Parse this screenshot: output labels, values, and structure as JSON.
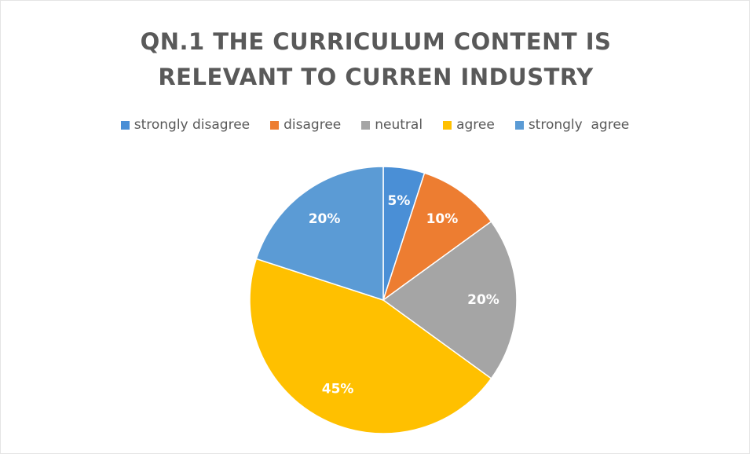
{
  "chart_data": {
    "type": "pie",
    "title": "QN.1 THE CURRICULUM CONTENT IS RELEVANT TO CURREN INDUSTRY",
    "categories": [
      "strongly disagree",
      "disagree",
      "neutral",
      "agree",
      "strongly  agree"
    ],
    "values": [
      5,
      10,
      20,
      45,
      20
    ],
    "value_labels": [
      "5%",
      "10%",
      "20%",
      "45%",
      "20%"
    ],
    "colors": [
      "#4a8fd6",
      "#ed7d31",
      "#a5a5a5",
      "#ffc000",
      "#5b9bd5"
    ],
    "legend": "top"
  }
}
